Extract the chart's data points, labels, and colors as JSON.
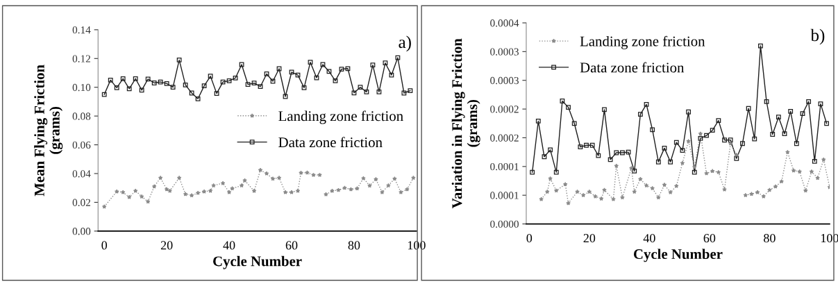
{
  "chart_data": [
    {
      "type": "line",
      "xlabel": "Cycle Number",
      "ylabel": "Mean Flying Friction\n(grams)",
      "annotations": [
        "a)"
      ],
      "xlim": [
        -2,
        100
      ],
      "ylim": [
        0,
        0.14
      ],
      "xticks": [
        0,
        20,
        40,
        60,
        80,
        100
      ],
      "yticks": [
        {
          "value": 0,
          "label": "0.00"
        },
        {
          "value": 0.02,
          "label": "0.02"
        },
        {
          "value": 0.04,
          "label": "0.04"
        },
        {
          "value": 0.06,
          "label": "0.06"
        },
        {
          "value": 0.08,
          "label": "0.08"
        },
        {
          "value": 0.1,
          "label": "0.10"
        },
        {
          "value": 0.12,
          "label": "0.12"
        },
        {
          "value": 0.14,
          "label": "0.14"
        }
      ],
      "grid": false,
      "legend": "right",
      "series": [
        {
          "name": "Landing zone friction",
          "color": "#8a8a8a",
          "marker": "star",
          "line_style": "dotted",
          "x": [
            0,
            4,
            6,
            8,
            10,
            12,
            14,
            16,
            18,
            20,
            21,
            24,
            26,
            28,
            30,
            32,
            34,
            35,
            38,
            40,
            41,
            44,
            45,
            48,
            50,
            52,
            54,
            56,
            58,
            60,
            62,
            63,
            65,
            67,
            69,
            70,
            71,
            73,
            75,
            77,
            79,
            81,
            83,
            85,
            87,
            89,
            91,
            93,
            95,
            97,
            99
          ],
          "values": [
            0.017,
            0.0275,
            0.027,
            0.0236,
            0.028,
            0.024,
            0.0205,
            0.031,
            0.037,
            0.029,
            0.028,
            0.037,
            0.0257,
            0.0248,
            0.0265,
            0.0275,
            0.028,
            0.0317,
            0.0333,
            0.027,
            0.0296,
            0.0317,
            0.0352,
            0.0279,
            0.0424,
            0.04,
            0.0364,
            0.037,
            0.027,
            0.027,
            0.028,
            0.0405,
            0.0406,
            0.039,
            0.039,
            null,
            0.0255,
            0.028,
            0.0285,
            0.03,
            0.029,
            0.0296,
            0.0367,
            0.0316,
            0.036,
            0.027,
            0.0317,
            0.0364,
            0.027,
            0.029,
            0.037
          ]
        },
        {
          "name": "Data zone friction",
          "color": "#1e1e1e",
          "marker": "square",
          "line_style": "solid",
          "x": [
            0,
            2,
            4,
            6,
            8,
            10,
            12,
            14,
            16,
            18,
            20,
            22,
            24,
            26,
            28,
            30,
            32,
            34,
            36,
            38,
            40,
            42,
            44,
            46,
            48,
            50,
            52,
            54,
            56,
            58,
            60,
            62,
            64,
            66,
            68,
            70,
            72,
            74,
            76,
            78,
            80,
            82,
            84,
            86,
            88,
            90,
            92,
            94,
            96,
            98
          ],
          "values": [
            0.095,
            0.105,
            0.0997,
            0.106,
            0.099,
            0.106,
            0.098,
            0.1057,
            0.103,
            0.1037,
            0.1026,
            0.1,
            0.119,
            0.1016,
            0.096,
            0.092,
            0.101,
            0.1077,
            0.0957,
            0.1037,
            0.1045,
            0.1064,
            0.1158,
            0.102,
            0.1029,
            0.1005,
            0.1093,
            0.1042,
            0.1129,
            0.0936,
            0.1105,
            0.1085,
            0.0997,
            0.1174,
            0.1066,
            0.1158,
            0.111,
            0.1045,
            0.1126,
            0.113,
            0.0961,
            0.1,
            0.0968,
            0.1155,
            0.0968,
            0.1169,
            0.1085,
            0.1206,
            0.096,
            0.0976
          ]
        }
      ]
    },
    {
      "type": "line",
      "xlabel": "Cycle Number",
      "ylabel": "Variation in Flying Friction\n(grams)",
      "annotations": [
        "b)"
      ],
      "xlim": [
        -1,
        100
      ],
      "ylim": [
        0,
        0.00035
      ],
      "xticks": [
        0,
        20,
        40,
        60,
        80,
        100
      ],
      "yticks": [
        {
          "value": 0,
          "label": "0.0000"
        },
        {
          "value": 5e-05,
          "label": "0.0001"
        },
        {
          "value": 0.0001,
          "label": "0.0001"
        },
        {
          "value": 0.00015,
          "label": "0.0002"
        },
        {
          "value": 0.0002,
          "label": "0.0002"
        },
        {
          "value": 0.00025,
          "label": "0.0003"
        },
        {
          "value": 0.0003,
          "label": "0.0003"
        },
        {
          "value": 0.00035,
          "label": "0.0004"
        }
      ],
      "grid": false,
      "legend": "top left",
      "series": [
        {
          "name": "Landing zone friction",
          "color": "#8a8a8a",
          "marker": "star",
          "line_style": "dotted",
          "x": [
            4,
            6,
            7,
            9,
            12,
            13,
            16,
            18,
            20,
            22,
            24,
            25,
            28,
            29,
            31,
            34,
            35,
            37,
            39,
            41,
            43,
            45,
            47,
            49,
            51,
            53,
            55,
            57,
            59,
            61,
            63,
            65,
            67,
            69,
            70,
            72,
            74,
            76,
            78,
            80,
            82,
            84,
            86,
            88,
            90,
            92,
            94,
            96,
            98,
            100
          ],
          "values": [
            4.3e-05,
            5.6e-05,
            7.9e-05,
            5.8e-05,
            6.9e-05,
            3.6e-05,
            5.6e-05,
            5e-05,
            5.6e-05,
            4.8e-05,
            4.4e-05,
            5.9e-05,
            4.3e-05,
            0.000101,
            4.6e-05,
            9.7e-05,
            5.6e-05,
            7.8e-05,
            6.7e-05,
            6.2e-05,
            4.6e-05,
            6.8e-05,
            5.5e-05,
            6.6e-05,
            0.000106,
            0.000144,
            9.9e-05,
            0.000157,
            8.8e-05,
            9.2e-05,
            9e-05,
            6e-05,
            0.00014,
            0.00012,
            null,
            5e-05,
            5.2e-05,
            5.5e-05,
            4.8e-05,
            5.9e-05,
            6.5e-05,
            7.4e-05,
            0.000125,
            9.3e-05,
            9.1e-05,
            5.8e-05,
            9.1e-05,
            8e-05,
            0.000112,
            6.4e-05
          ]
        },
        {
          "name": "Data zone friction",
          "color": "#1e1e1e",
          "marker": "square",
          "line_style": "solid",
          "x": [
            1,
            3,
            5,
            7,
            9,
            11,
            13,
            15,
            17,
            19,
            21,
            23,
            25,
            27,
            29,
            31,
            33,
            35,
            37,
            39,
            41,
            43,
            45,
            47,
            49,
            51,
            53,
            55,
            57,
            59,
            61,
            63,
            65,
            67,
            69,
            71,
            73,
            75,
            77,
            79,
            81,
            83,
            85,
            87,
            89,
            91,
            93,
            95,
            97,
            99
          ],
          "values": [
            9e-05,
            0.000179,
            0.000117,
            0.000129,
            9e-05,
            0.000214,
            0.000203,
            0.000175,
            0.000134,
            0.000137,
            0.000137,
            0.000119,
            0.000199,
            0.000112,
            0.000124,
            0.000124,
            0.000125,
            9.2e-05,
            0.000191,
            0.000208,
            0.000164,
            0.000108,
            0.000132,
            0.000108,
            0.000142,
            0.000128,
            0.000195,
            9e-05,
            0.000149,
            0.000154,
            0.000163,
            0.00018,
            0.000146,
            0.000146,
            0.000114,
            0.00014,
            0.000201,
            0.000148,
            0.00031,
            0.000213,
            0.000156,
            0.000186,
            0.000157,
            0.000196,
            0.00014,
            0.000192,
            0.000213,
            0.000109,
            0.000209,
            0.000175
          ]
        }
      ]
    }
  ]
}
